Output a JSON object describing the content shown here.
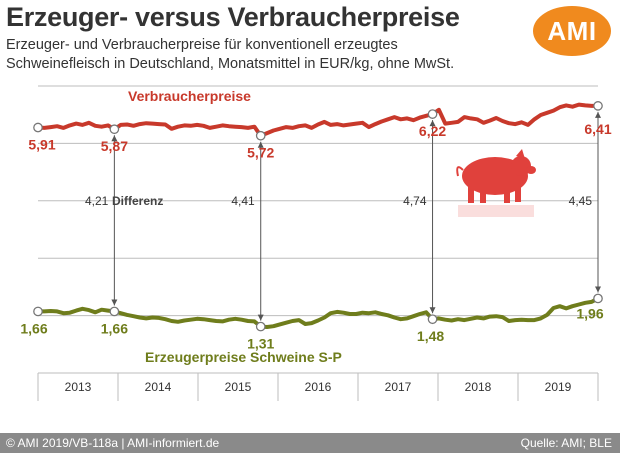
{
  "header": {
    "title": "Erzeuger- versus Verbraucherpreise",
    "subtitle_line1": "Erzeuger- und Verbraucherpreise für konventionell erzeugtes",
    "subtitle_line2": "Schweinefleisch in Deutschland, Monatsmittel in EUR/kg, ohne MwSt.",
    "logo_text": "AMI"
  },
  "footer": {
    "left": "© AMI 2019/VB-118a | AMI-informiert.de",
    "right": "Quelle: AMI; BLE"
  },
  "colors": {
    "consumer": "#c8392b",
    "producer": "#6f7d1c",
    "pig": "#e0413c",
    "label_text": "#555555"
  },
  "chart_data": {
    "type": "line",
    "title": "Erzeuger- versus Verbraucherpreise",
    "x_labels": [
      "2013",
      "2014",
      "2015",
      "2016",
      "2017",
      "2018",
      "2019"
    ],
    "ylim": [
      0,
      7
    ],
    "grid": true,
    "series": [
      {
        "name": "Verbraucherpreise",
        "key": "consumer",
        "values": [
          5.91,
          5.9,
          5.92,
          5.94,
          5.9,
          5.96,
          6.0,
          5.97,
          6.02,
          5.95,
          5.93,
          5.96,
          5.87,
          5.97,
          5.98,
          5.95,
          5.99,
          6.01,
          6.0,
          5.99,
          5.98,
          5.88,
          5.93,
          5.96,
          5.95,
          5.97,
          5.95,
          5.9,
          5.93,
          5.96,
          5.94,
          5.93,
          5.92,
          5.9,
          5.93,
          5.72,
          5.78,
          5.84,
          5.88,
          5.92,
          5.9,
          5.94,
          5.96,
          5.9,
          5.98,
          6.04,
          5.97,
          5.99,
          5.96,
          5.98,
          6.0,
          6.02,
          5.92,
          5.99,
          6.05,
          6.1,
          6.15,
          6.1,
          6.12,
          6.08,
          6.14,
          6.18,
          6.22,
          6.32,
          6.0,
          6.02,
          6.04,
          6.15,
          6.12,
          6.1,
          6.02,
          6.07,
          6.13,
          6.06,
          6.01,
          5.99,
          6.03,
          5.97,
          6.1,
          6.2,
          6.25,
          6.3,
          6.38,
          6.42,
          6.39,
          6.44,
          6.42,
          6.41,
          6.41
        ],
        "labels": [
          {
            "index": 0,
            "text": "5,91"
          },
          {
            "index": 12,
            "text": "5,87"
          },
          {
            "index": 35,
            "text": "5,72"
          },
          {
            "index": 62,
            "text": "6,22"
          },
          {
            "index": 88,
            "text": "6,41"
          }
        ]
      },
      {
        "name": "Erzeugerpreise Schweine S-P",
        "key": "producer",
        "values": [
          1.66,
          1.66,
          1.67,
          1.66,
          1.62,
          1.63,
          1.68,
          1.72,
          1.69,
          1.64,
          1.7,
          1.68,
          1.66,
          1.62,
          1.58,
          1.55,
          1.52,
          1.5,
          1.52,
          1.51,
          1.48,
          1.44,
          1.42,
          1.45,
          1.47,
          1.49,
          1.48,
          1.46,
          1.44,
          1.43,
          1.47,
          1.49,
          1.47,
          1.44,
          1.43,
          1.31,
          1.3,
          1.32,
          1.36,
          1.4,
          1.44,
          1.46,
          1.37,
          1.39,
          1.45,
          1.52,
          1.62,
          1.65,
          1.63,
          1.6,
          1.6,
          1.63,
          1.62,
          1.64,
          1.6,
          1.57,
          1.52,
          1.48,
          1.5,
          1.55,
          1.6,
          1.64,
          1.48,
          1.5,
          1.47,
          1.45,
          1.48,
          1.46,
          1.49,
          1.52,
          1.5,
          1.54,
          1.55,
          1.53,
          1.44,
          1.46,
          1.47,
          1.46,
          1.46,
          1.5,
          1.58,
          1.74,
          1.78,
          1.73,
          1.78,
          1.82,
          1.86,
          1.88,
          1.96
        ],
        "labels": [
          {
            "index": 0,
            "text": "1,66"
          },
          {
            "index": 12,
            "text": "1,66"
          },
          {
            "index": 35,
            "text": "1,31"
          },
          {
            "index": 62,
            "text": "1,48"
          },
          {
            "index": 88,
            "text": "1,96"
          }
        ]
      }
    ],
    "differences": [
      {
        "index": 12,
        "text": "4,21"
      },
      {
        "index": 35,
        "text": "4,41"
      },
      {
        "index": 62,
        "text": "4,74"
      },
      {
        "index": 88,
        "text": "4,45"
      }
    ],
    "annotations": {
      "consumer_label": "Verbraucherpreise",
      "producer_label": "Erzeugerpreise Schweine S-P",
      "difference_label": "Differenz"
    }
  }
}
